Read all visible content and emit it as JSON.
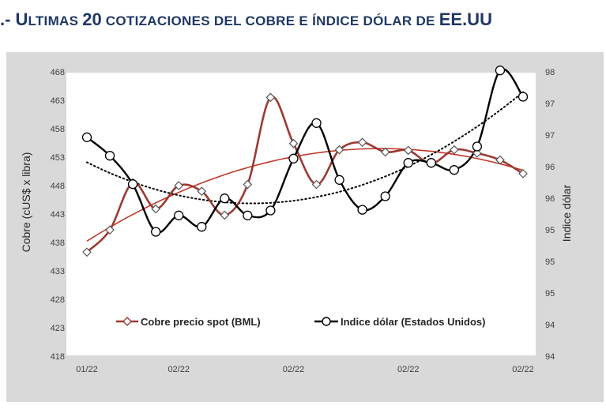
{
  "title": {
    "prefix": ".- U",
    "word1_rest": "LTIMAS ",
    "number": "20",
    "middle": " COTIZACIONES DEL COBRE E ÍNDICE DÓLAR DE ",
    "suffix": "EE.UU"
  },
  "colors": {
    "panel_bg": "#d9d9d9",
    "plot_bg": "#ffffff",
    "copper": "#9b3a33",
    "copper_trend": "#c0392b",
    "dollar": "#000000",
    "title": "#1f3864"
  },
  "chart_data": {
    "type": "line",
    "x": [
      "01/22",
      "",
      "",
      "",
      "",
      "",
      "",
      "",
      "",
      "",
      "",
      "",
      "",
      "",
      "",
      "",
      "",
      "",
      "",
      "02/22"
    ],
    "x_tick_labels": [
      "01/22",
      "02/22",
      "02/22",
      "02/22",
      "02/22"
    ],
    "x_tick_indices": [
      0,
      4,
      9,
      14,
      19
    ],
    "ylabel_left": "Cobre (cUS$ x libra)",
    "ylabel_right": "Indice dólar",
    "yleft": {
      "min": 418,
      "max": 468,
      "ticks": [
        "468",
        "463",
        "458",
        "453",
        "448",
        "443",
        "438",
        "433",
        "428",
        "423",
        "418"
      ]
    },
    "yright": {
      "min": 94,
      "max": 98,
      "ticks": [
        "98",
        "97",
        "97",
        "96",
        "96",
        "95",
        "95",
        "95",
        "94",
        "94"
      ]
    },
    "grid": false,
    "legend_position": "lower-center",
    "series": [
      {
        "name": "Cobre precio spot (BML)",
        "axis": "left",
        "marker": "diamond",
        "values": [
          436.3,
          440.2,
          448.5,
          443.9,
          448.0,
          447.0,
          442.8,
          448.2,
          463.5,
          455.4,
          448.2,
          454.3,
          455.6,
          453.9,
          454.2,
          451.9,
          454.3,
          453.7,
          452.5,
          450.1
        ]
      },
      {
        "name": "Indice dólar (Estados Unidos)",
        "axis": "right",
        "marker": "circle",
        "values": [
          97.08,
          96.82,
          96.42,
          95.75,
          95.98,
          95.82,
          96.22,
          95.98,
          96.05,
          96.78,
          97.28,
          96.48,
          96.06,
          96.25,
          96.72,
          96.72,
          96.62,
          96.95,
          98.02,
          97.65
        ]
      }
    ]
  }
}
